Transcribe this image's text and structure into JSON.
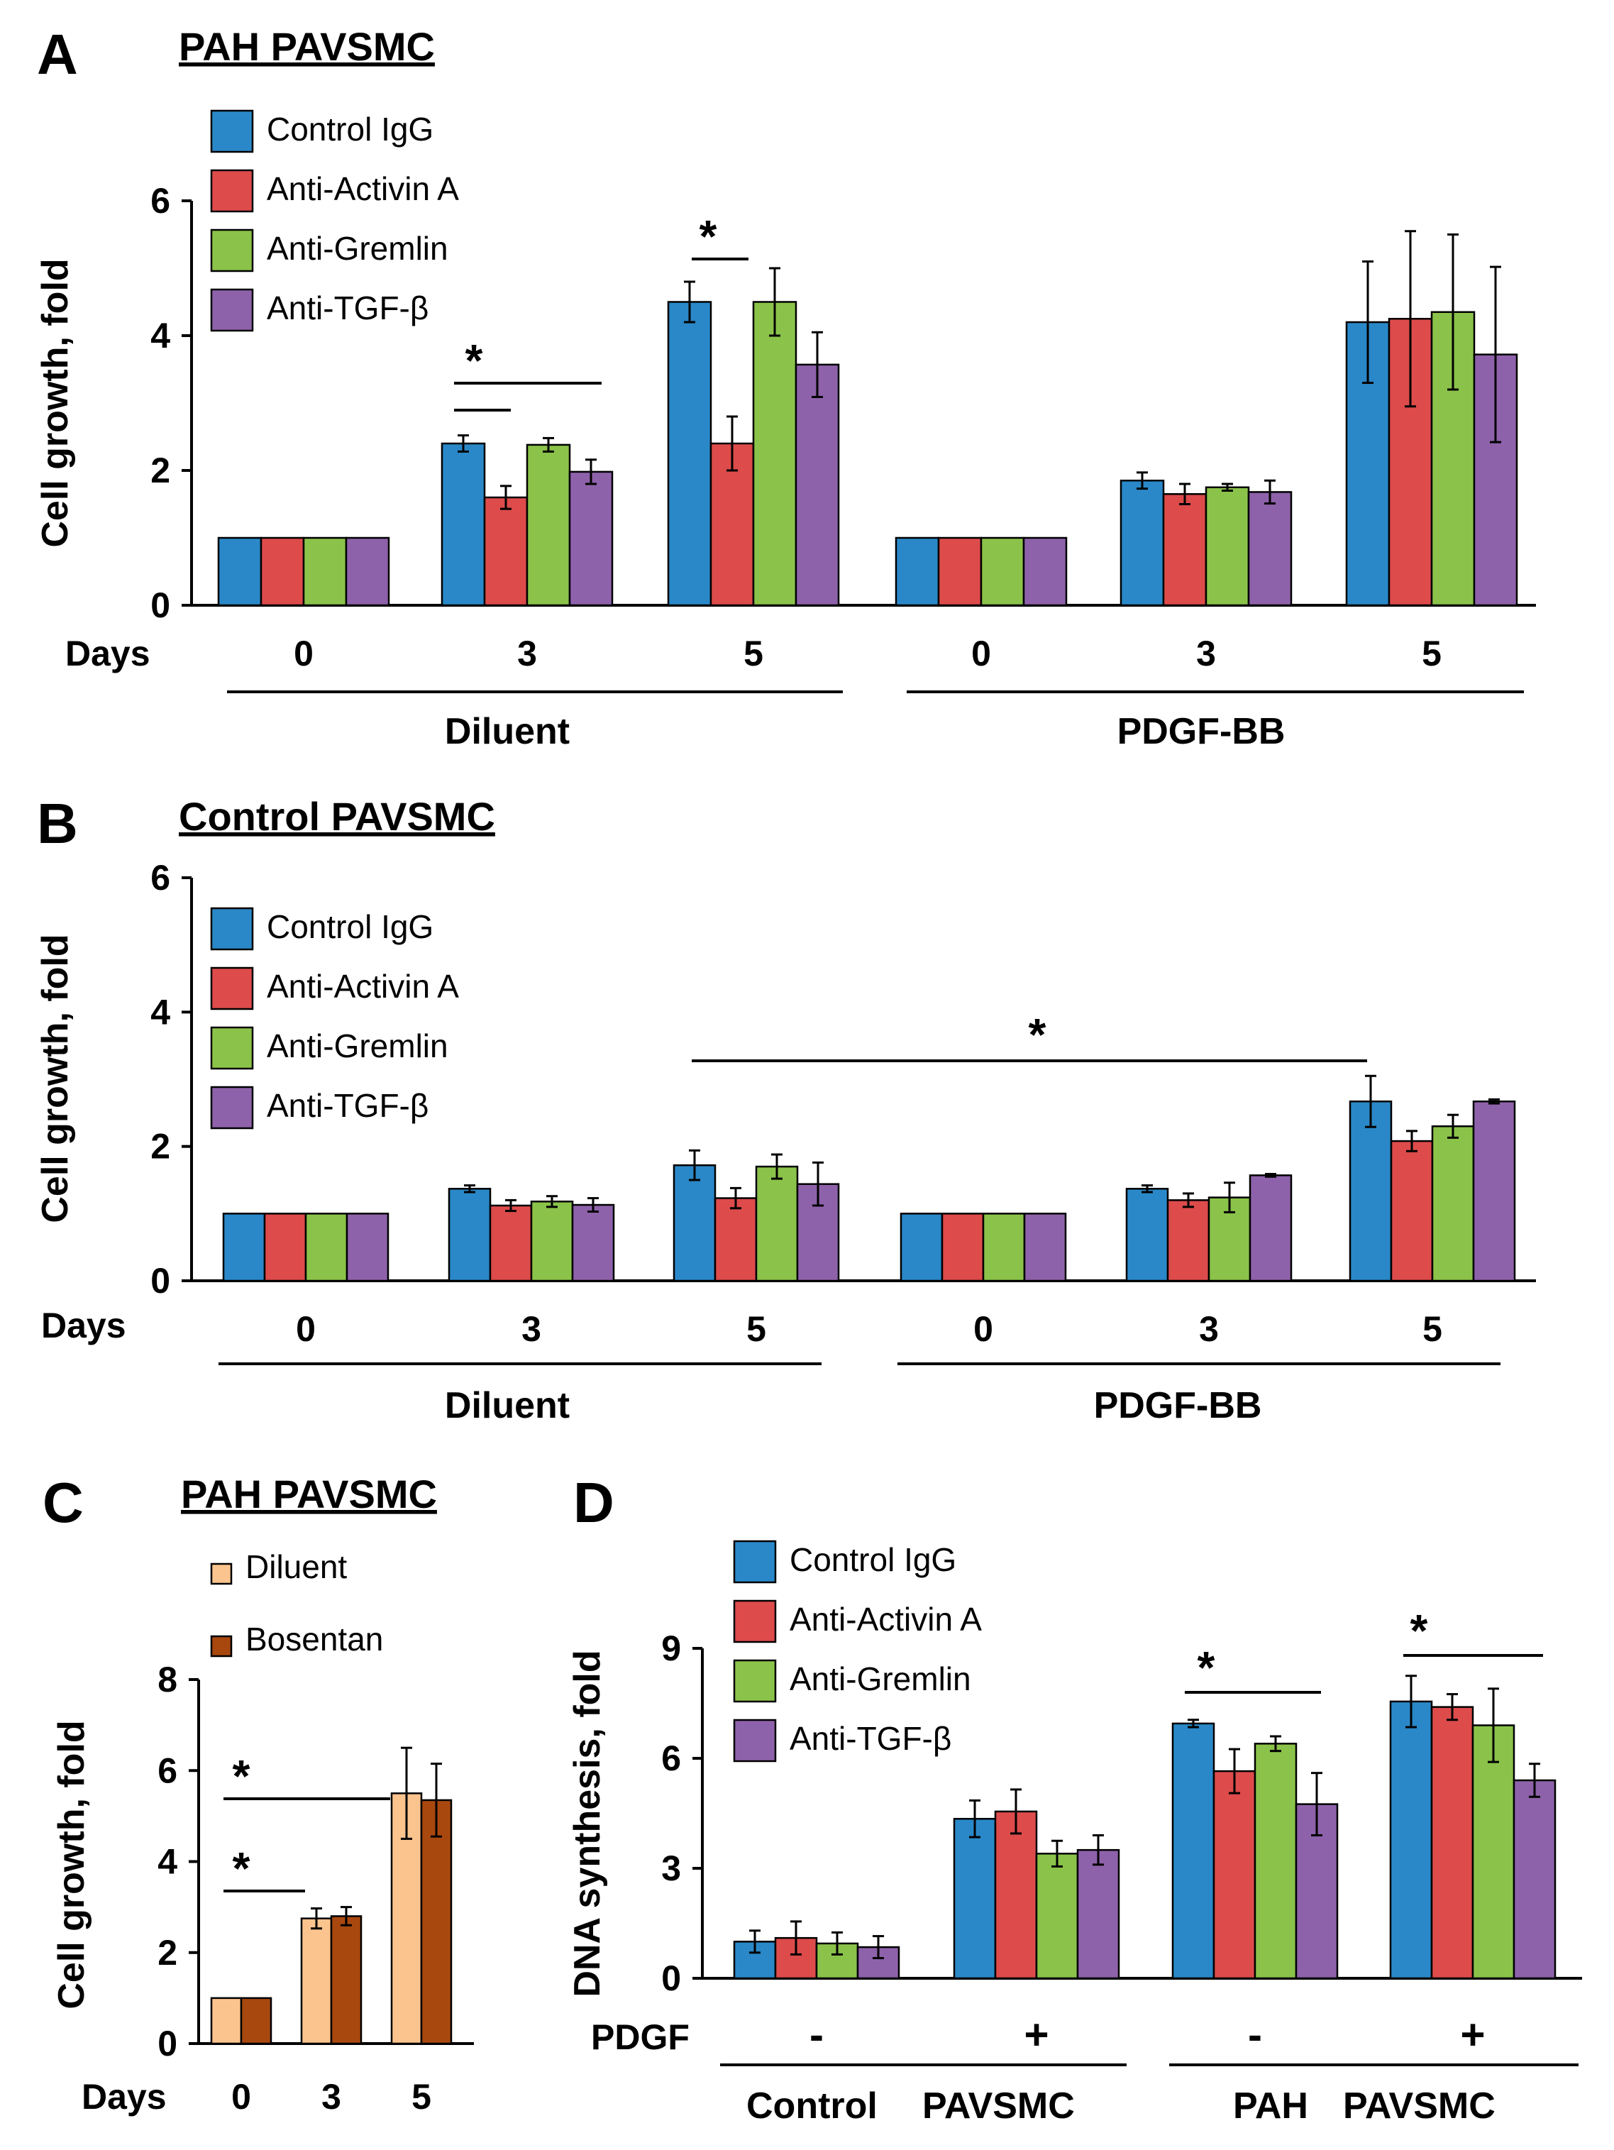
{
  "colors": {
    "control_igg": "#2a88c8",
    "anti_activin_a": "#dd4b4b",
    "anti_gremlin": "#8bc34a",
    "anti_tgf_beta": "#8e62aa",
    "diluent": "#fbc48e",
    "bosentan": "#a8480f"
  },
  "chart_data": [
    {
      "panel": "A",
      "type": "bar",
      "title": "PAH PAVSMC",
      "ylabel": "Cell growth, fold",
      "ylim": [
        0,
        6
      ],
      "yticks": [
        "0",
        "2",
        "4",
        "6"
      ],
      "xlabel": "Days",
      "categories": [
        "0",
        "3",
        "5",
        "0",
        "3",
        "5"
      ],
      "groups": [
        "Diluent",
        "PDGF-BB"
      ],
      "legend": "top-left",
      "series": [
        {
          "name": "Control IgG",
          "values": [
            1,
            2.4,
            4.5,
            1,
            1.85,
            4.2
          ],
          "errors": [
            0,
            0.12,
            0.3,
            0,
            0.12,
            0.9
          ]
        },
        {
          "name": "Anti-Activin A",
          "values": [
            1,
            1.6,
            2.4,
            1,
            1.65,
            4.25
          ],
          "errors": [
            0,
            0.17,
            0.4,
            0,
            0.15,
            1.3
          ]
        },
        {
          "name": "Anti-Gremlin",
          "values": [
            1,
            2.38,
            4.5,
            1,
            1.75,
            4.35
          ],
          "errors": [
            0,
            0.1,
            0.5,
            0,
            0.05,
            1.15
          ]
        },
        {
          "name": "Anti-TGF-β",
          "values": [
            1,
            1.98,
            3.57,
            1,
            1.68,
            3.72
          ],
          "errors": [
            0,
            0.18,
            0.48,
            0,
            0.17,
            1.3
          ]
        }
      ],
      "significance": "*"
    },
    {
      "panel": "B",
      "type": "bar",
      "title": "Control PAVSMC",
      "ylabel": "Cell growth, fold",
      "ylim": [
        0,
        6
      ],
      "yticks": [
        "0",
        "2",
        "4",
        "6"
      ],
      "xlabel": "Days",
      "categories": [
        "0",
        "3",
        "5",
        "0",
        "3",
        "5"
      ],
      "groups": [
        "Diluent",
        "PDGF-BB"
      ],
      "legend": "top-left",
      "series": [
        {
          "name": "Control IgG",
          "values": [
            1,
            1.37,
            1.72,
            1,
            1.37,
            2.67
          ],
          "errors": [
            0,
            0.05,
            0.22,
            0,
            0.05,
            0.38
          ]
        },
        {
          "name": "Anti-Activin A",
          "values": [
            1,
            1.12,
            1.23,
            1,
            1.2,
            2.08
          ],
          "errors": [
            0,
            0.08,
            0.15,
            0,
            0.1,
            0.15
          ]
        },
        {
          "name": "Anti-Gremlin",
          "values": [
            1,
            1.18,
            1.7,
            1,
            1.24,
            2.3
          ],
          "errors": [
            0,
            0.08,
            0.18,
            0,
            0.22,
            0.17
          ]
        },
        {
          "name": "Anti-TGF-β",
          "values": [
            1,
            1.13,
            1.44,
            1,
            1.57,
            2.67
          ],
          "errors": [
            0,
            0.1,
            0.32,
            0,
            0.02,
            0.03
          ]
        }
      ],
      "significance": "*"
    },
    {
      "panel": "C",
      "type": "bar",
      "title": "PAH PAVSMC",
      "ylabel": "Cell growth, fold",
      "ylim": [
        0,
        8
      ],
      "yticks": [
        "0",
        "2",
        "4",
        "6",
        "8"
      ],
      "xlabel": "Days",
      "categories": [
        "0",
        "3",
        "5"
      ],
      "legend": "top-left",
      "series": [
        {
          "name": "Diluent",
          "values": [
            1,
            2.75,
            5.5
          ],
          "errors": [
            0,
            0.22,
            1.0
          ]
        },
        {
          "name": "Bosentan",
          "values": [
            1,
            2.8,
            5.35
          ],
          "errors": [
            0,
            0.2,
            0.8
          ]
        }
      ],
      "significance": "*"
    },
    {
      "panel": "D",
      "type": "bar",
      "title": "",
      "ylabel": "DNA synthesis, fold",
      "ylim": [
        0,
        9
      ],
      "yticks": [
        "0",
        "3",
        "6",
        "9"
      ],
      "xlabel": "PDGF",
      "categories": [
        "-",
        "+",
        "-",
        "+"
      ],
      "group_words": [
        [
          "Control",
          "PAVSMC"
        ],
        [
          "PAH",
          "PAVSMC"
        ]
      ],
      "legend": "top-left",
      "series": [
        {
          "name": "Control IgG",
          "values": [
            1.0,
            4.35,
            6.95,
            7.55
          ],
          "errors": [
            0.3,
            0.5,
            0.1,
            0.7
          ]
        },
        {
          "name": "Anti-Activin A",
          "values": [
            1.1,
            4.55,
            5.65,
            7.4
          ],
          "errors": [
            0.45,
            0.6,
            0.6,
            0.35
          ]
        },
        {
          "name": "Anti-Gremlin",
          "values": [
            0.95,
            3.4,
            6.4,
            6.9
          ],
          "errors": [
            0.3,
            0.35,
            0.2,
            1.0
          ]
        },
        {
          "name": "Anti-TGF-β",
          "values": [
            0.85,
            3.5,
            4.75,
            5.4
          ],
          "errors": [
            0.3,
            0.4,
            0.85,
            0.45
          ]
        }
      ],
      "significance": "*"
    }
  ],
  "labels": {
    "A": "A",
    "B": "B",
    "C": "C",
    "D": "D"
  }
}
